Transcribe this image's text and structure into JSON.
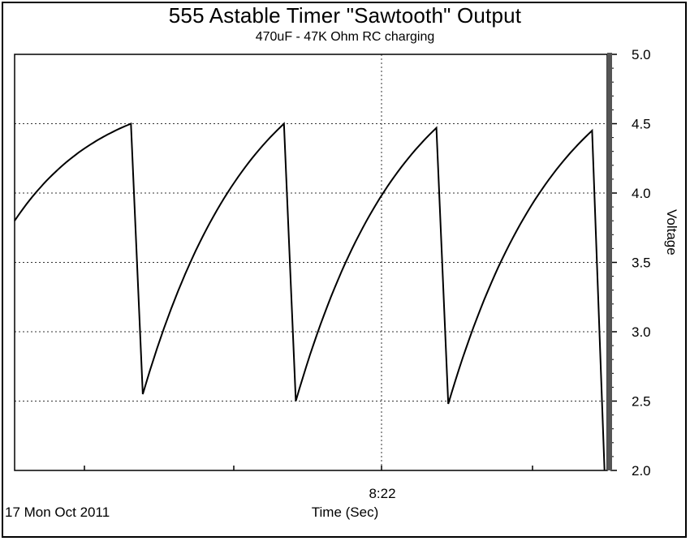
{
  "chart_data": {
    "type": "line",
    "title": "555 Astable Timer \"Sawtooth\" Output",
    "subtitle": "470uF - 47K Ohm  RC charging",
    "xlabel": "Time (Sec)",
    "ylabel": "Voltage",
    "x_center_tick_label": "8:22",
    "date_label": "17 Mon Oct 2011",
    "y_ticks": [
      "2.0",
      "2.5",
      "3.0",
      "3.5",
      "4.0",
      "4.5",
      "5.0"
    ],
    "ylim": [
      2.0,
      5.0
    ],
    "y_axis_side": "right",
    "grid": true,
    "series": [
      {
        "color": "#000000",
        "cycles": [
          {
            "t_start": 0.0,
            "t_peak": 0.216,
            "t_trough": 0.238,
            "v_start": 3.8,
            "v_peak": 4.5,
            "v_trough": 2.55
          },
          {
            "t_start": 0.238,
            "t_peak": 0.5,
            "t_trough": 0.522,
            "v_start": 2.55,
            "v_peak": 4.5,
            "v_trough": 2.5
          },
          {
            "t_start": 0.522,
            "t_peak": 0.783,
            "t_trough": 0.805,
            "v_start": 2.5,
            "v_peak": 4.47,
            "v_trough": 2.48
          },
          {
            "t_start": 0.805,
            "t_peak": 1.072,
            "t_trough": 1.095,
            "v_start": 2.48,
            "v_peak": 4.45,
            "v_trough": 2.0
          }
        ]
      }
    ],
    "xlim": [
      0.0,
      1.1
    ]
  }
}
